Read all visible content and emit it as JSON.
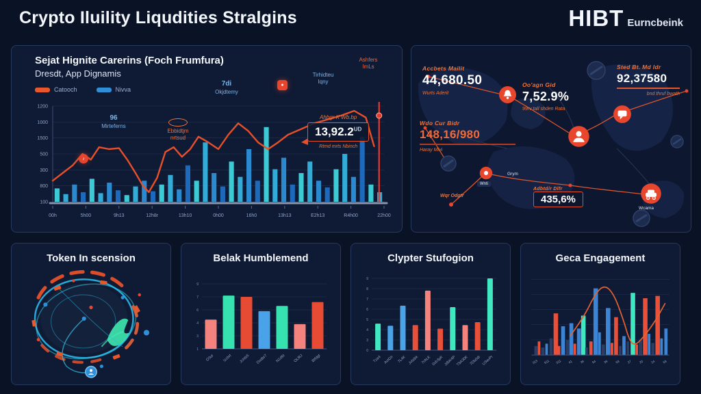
{
  "header": {
    "title": "Crypto Iluility Liqudities Stralgins",
    "brand": "HIBT",
    "brand_suffix": "Eurncbeink"
  },
  "colors": {
    "accent_orange": "#e8582c",
    "accent_red": "#e8392b",
    "blue": "#2f8fd8",
    "teal": "#3fe8c0",
    "salmon": "#f4837d",
    "panel": "#0f1b34"
  },
  "main_chart": {
    "title": "Sejat Hignite Carerins (Foch Frumfura)",
    "subtitle": "Dresdt, App Dignamis",
    "legend": [
      {
        "label": "Catooch",
        "color": "#e8582c"
      },
      {
        "label": "Nivva",
        "color": "#2f8fd8"
      }
    ],
    "annotations": {
      "a96_top": "96",
      "a96_bottom": "Mirteferns",
      "ebb_top": "Ebbidtjm",
      "ebb_bottom": "nrtsud",
      "d7_top": "7di",
      "d7_bottom": "Okjdtemy",
      "tir_top": "Tirhidteu",
      "tir_bottom": "Iqny",
      "ash_top": "Ashfers",
      "ash_bottom": "ImLs",
      "callout_above": "Ahbgr K Wb.bp",
      "callout_value": "13,92.2",
      "callout_suffix": "UD",
      "callout_below": "Rtmd mrts Nbinch"
    },
    "chart_data": {
      "type": "bar+line",
      "y_ticks": [
        "1200",
        "1000",
        "1500",
        "500",
        "300",
        "800",
        "100"
      ],
      "x_ticks": [
        "00h",
        "5h00",
        "9h13",
        "12h8r",
        "13h10",
        "0h00",
        "16h0",
        "13h13",
        "E2h13",
        "R4h00",
        "22h00"
      ],
      "bar_values": [
        0.14,
        0.08,
        0.18,
        0.1,
        0.24,
        0.09,
        0.2,
        0.12,
        0.07,
        0.16,
        0.22,
        0.11,
        0.18,
        0.28,
        0.13,
        0.38,
        0.22,
        0.62,
        0.3,
        0.16,
        0.42,
        0.26,
        0.55,
        0.22,
        0.78,
        0.34,
        0.46,
        0.18,
        0.3,
        0.42,
        0.22,
        0.15,
        0.34,
        0.5,
        0.26,
        0.68,
        0.18,
        0.1
      ],
      "bar_palette": [
        "#1f6fc4",
        "#2d8fd8",
        "#35b4e0",
        "#3fd4dd"
      ],
      "line_points": [
        [
          0,
          0.22
        ],
        [
          0.03,
          0.3
        ],
        [
          0.06,
          0.38
        ],
        [
          0.09,
          0.5
        ],
        [
          0.115,
          0.44
        ],
        [
          0.14,
          0.57
        ],
        [
          0.17,
          0.55
        ],
        [
          0.2,
          0.56
        ],
        [
          0.225,
          0.44
        ],
        [
          0.25,
          0.3
        ],
        [
          0.27,
          0.18
        ],
        [
          0.29,
          0.1
        ],
        [
          0.315,
          0.25
        ],
        [
          0.34,
          0.52
        ],
        [
          0.365,
          0.57
        ],
        [
          0.39,
          0.47
        ],
        [
          0.415,
          0.55
        ],
        [
          0.44,
          0.68
        ],
        [
          0.47,
          0.62
        ],
        [
          0.5,
          0.55
        ],
        [
          0.53,
          0.7
        ],
        [
          0.56,
          0.82
        ],
        [
          0.59,
          0.74
        ],
        [
          0.62,
          0.62
        ],
        [
          0.65,
          0.55
        ],
        [
          0.68,
          0.62
        ],
        [
          0.71,
          0.7
        ],
        [
          0.75,
          0.76
        ],
        [
          0.79,
          0.82
        ],
        [
          0.83,
          0.86
        ],
        [
          0.87,
          0.9
        ],
        [
          0.91,
          0.95
        ],
        [
          0.945,
          0.88
        ],
        [
          0.97,
          0.58
        ]
      ],
      "marker_x": 0.985,
      "line_color": "#e8502a"
    }
  },
  "map_panel": {
    "stats": [
      {
        "label": "Accbets Mailit",
        "value": "44,680.50",
        "sub": "Wurts Aderit"
      },
      {
        "label": "Oo'agn Gid",
        "value": "7,52.9%",
        "sub": "99rv tall shden Rata"
      },
      {
        "label": "Sted Bt. Md ldr",
        "value": "92,37580",
        "sub": "bnd thruf bwath"
      },
      {
        "label": "Wdo Cur Bidr",
        "value": "148,16/980",
        "sub": "Haray Mivi"
      },
      {
        "label": "Adbtd/r Dlfr",
        "value": "435,6%",
        "sub": ""
      }
    ],
    "small_labels": {
      "chip": "Wnti",
      "grym": "Grym",
      "wqr": "Wqr Odgtr",
      "wcama": "Wcama"
    }
  },
  "panels": {
    "token": {
      "title": "Token In scension"
    },
    "belak": {
      "title": "Belak Humblemend",
      "chart_data": {
        "type": "bar",
        "categories": [
          "O3ur",
          "Izzbrt",
          "Jchtb5",
          "Dodbr7",
          "N1d6t",
          "OL8tJ",
          "Btfdgt"
        ],
        "values": [
          0.45,
          0.82,
          0.8,
          0.58,
          0.66,
          0.38,
          0.72
        ],
        "colors": [
          "#f4837d",
          "#35e2b0",
          "#e84b33",
          "#4aa3e8",
          "#35e2b0",
          "#f4837d",
          "#e84b33"
        ],
        "y_ticks": [
          "9",
          "7",
          "6",
          "4",
          "3",
          "1"
        ]
      }
    },
    "clypter": {
      "title": "Clypter Stufogion",
      "chart_data": {
        "type": "bar",
        "categories": [
          "Tza4",
          "AvtGh",
          "7L4K",
          "Jvbdrk",
          "7rALK",
          "0vb3pK",
          "JdbK4P",
          "T9A30K",
          "7Db0dr",
          "U3avPt"
        ],
        "values": [
          0.37,
          0.34,
          0.62,
          0.35,
          0.83,
          0.3,
          0.6,
          0.35,
          0.39,
          1.0
        ],
        "colors": [
          "#3fe8c0",
          "#4aa3e8",
          "#4aa3e8",
          "#e8503a",
          "#f4837d",
          "#e8503a",
          "#3fe8c0",
          "#f4837d",
          "#e8503a",
          "#3fe8c0"
        ],
        "y_ticks": [
          "9",
          "8",
          "7",
          "6",
          "5",
          "4",
          "3",
          "0"
        ]
      }
    },
    "geca": {
      "title": "Geca Engagement",
      "chart_data": {
        "type": "bar+line",
        "x_ticks": [
          "313",
          "911",
          "311",
          "41",
          "39",
          "94",
          "39",
          "59",
          "27",
          "20",
          "24",
          "59"
        ],
        "bars": [
          [
            0.02,
            5,
            0.12,
            "dark"
          ],
          [
            0.045,
            4,
            0.18,
            "red"
          ],
          [
            0.07,
            5,
            0.1,
            "dark"
          ],
          [
            0.1,
            4,
            0.15,
            "blue"
          ],
          [
            0.13,
            5,
            0.22,
            "dark"
          ],
          [
            0.16,
            7,
            0.55,
            "red"
          ],
          [
            0.19,
            4,
            0.12,
            "red"
          ],
          [
            0.215,
            6,
            0.38,
            "blue"
          ],
          [
            0.25,
            5,
            0.2,
            "dark"
          ],
          [
            0.275,
            6,
            0.42,
            "blue"
          ],
          [
            0.305,
            4,
            0.15,
            "red"
          ],
          [
            0.33,
            6,
            0.35,
            "blue"
          ],
          [
            0.36,
            7,
            0.52,
            "teal"
          ],
          [
            0.39,
            4,
            0.1,
            "dark"
          ],
          [
            0.42,
            5,
            0.18,
            "red"
          ],
          [
            0.45,
            7,
            0.88,
            "blue"
          ],
          [
            0.485,
            4,
            0.3,
            "blue"
          ],
          [
            0.51,
            5,
            0.14,
            "dark"
          ],
          [
            0.54,
            7,
            0.62,
            "blue"
          ],
          [
            0.575,
            4,
            0.16,
            "red"
          ],
          [
            0.6,
            6,
            0.5,
            "red"
          ],
          [
            0.635,
            4,
            0.12,
            "dark"
          ],
          [
            0.66,
            5,
            0.25,
            "blue"
          ],
          [
            0.69,
            4,
            0.18,
            "dark"
          ],
          [
            0.72,
            7,
            0.82,
            "teal"
          ],
          [
            0.755,
            4,
            0.14,
            "red"
          ],
          [
            0.78,
            5,
            0.2,
            "dark"
          ],
          [
            0.81,
            7,
            0.75,
            "red"
          ],
          [
            0.845,
            4,
            0.28,
            "blue"
          ],
          [
            0.87,
            5,
            0.16,
            "dark"
          ],
          [
            0.9,
            7,
            0.78,
            "red"
          ],
          [
            0.935,
            4,
            0.22,
            "blue"
          ],
          [
            0.965,
            5,
            0.35,
            "blue"
          ]
        ],
        "bar_colors": {
          "dark": "#2c3d63",
          "red": "#e8503a",
          "blue": "#3d84d4",
          "teal": "#3fe8c0"
        },
        "curve": [
          [
            0.28,
            0.25
          ],
          [
            0.38,
            0.5
          ],
          [
            0.46,
            0.8
          ],
          [
            0.53,
            0.93
          ],
          [
            0.6,
            0.8
          ],
          [
            0.67,
            0.45
          ],
          [
            0.71,
            0.2
          ],
          [
            0.75,
            0.12
          ],
          [
            0.82,
            0.25
          ],
          [
            0.9,
            0.45
          ],
          [
            0.97,
            0.68
          ]
        ],
        "curve_color": "#e8632f"
      }
    }
  }
}
